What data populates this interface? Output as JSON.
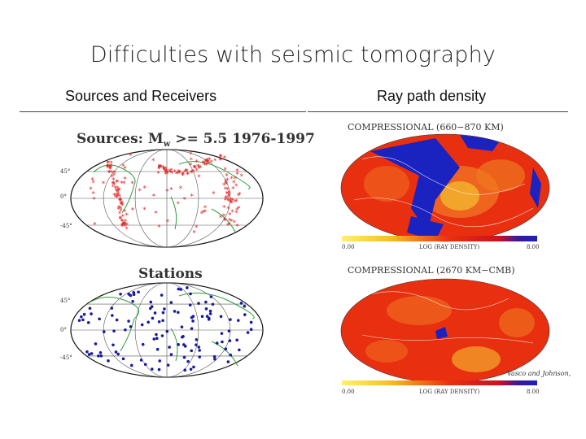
{
  "slide": {
    "title": "Difficulties with seismic tomography",
    "left_heading": "Sources and Receivers",
    "right_heading": "Ray path density"
  },
  "sources_map": {
    "caption": "Sources: M",
    "subscript": "w",
    "caption_rest": " >= 5.5 1976-1997",
    "lat_labels": [
      "45°",
      "0°",
      "-45°"
    ],
    "marker_color": "#e02020"
  },
  "stations_map": {
    "caption": "Stations",
    "lat_labels": [
      "45°",
      "0°",
      "-45°"
    ],
    "marker_color": "#1a1aa0"
  },
  "density_map_top": {
    "caption": "COMPRESSIONAL (660−870 KM)",
    "scale_min": "0.00",
    "scale_label": "LOG (RAY DENSITY)",
    "scale_max": "8.00"
  },
  "density_map_bottom": {
    "caption": "COMPRESSIONAL (2670 KM−CMB)",
    "credit": "Vasco and Johnson,",
    "scale_min": "0.00",
    "scale_label": "LOG (RAY DENSITY)",
    "scale_max": "8.00"
  },
  "colors": {
    "map_outline": "#111111",
    "coastline": "#2e9e3e",
    "density_base": "#e83010",
    "density_high": "#1a22c0",
    "density_low": "#f4d020"
  }
}
